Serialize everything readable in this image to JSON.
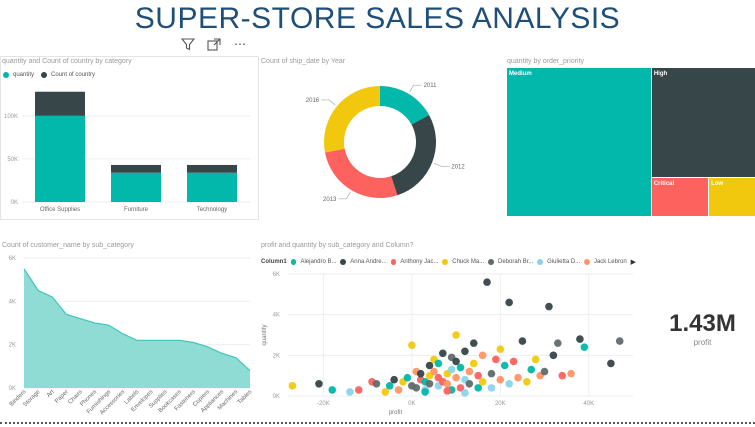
{
  "page_title": "SUPER-STORE SALES ANALYSIS",
  "toolbar": {
    "filter_icon": "filter-icon",
    "focus_icon": "focus-mode-icon",
    "more_icon": "more-options-icon",
    "more_glyph": "⋯"
  },
  "colors": {
    "teal": "#01b8aa",
    "dark": "#374649",
    "red": "#fd625e",
    "yellow": "#f2c80f",
    "grey": "#5f6b6d",
    "lightblue": "#8ad4eb",
    "orange": "#fe9666"
  },
  "kpi": {
    "value": "1.43M",
    "label": "profit"
  },
  "chart_data": [
    {
      "type": "bar",
      "title": "quantity and Count of country by category",
      "legend": [
        "quantity",
        "Count of country"
      ],
      "categories": [
        "Office Supplies",
        "Furniture",
        "Technology"
      ],
      "series": [
        {
          "name": "quantity",
          "values": [
            100000,
            34000,
            34000
          ]
        },
        {
          "name": "Count of country",
          "values": [
            28000,
            9000,
            9000
          ]
        }
      ],
      "yticks": [
        "0K",
        "50K",
        "100K"
      ],
      "ylim": [
        0,
        130000
      ]
    },
    {
      "type": "pie",
      "title": "Count of ship_date by Year",
      "labels": [
        "2011",
        "2012",
        "2013",
        "2016"
      ],
      "values": [
        17,
        28,
        27,
        28
      ]
    },
    {
      "type": "heatmap",
      "title": "quantity by order_priority",
      "labels": [
        "Medium",
        "High",
        "Critical",
        "Low"
      ],
      "values": [
        58,
        31,
        6,
        5
      ]
    },
    {
      "type": "area",
      "title": "Count of customer_name by sub_category",
      "categories": [
        "Binders",
        "Storage",
        "Art",
        "Paper",
        "Chairs",
        "Phones",
        "Furnishings",
        "Accessories",
        "Labels",
        "Envelopes",
        "Supplies",
        "Bookcases",
        "Fasteners",
        "Copiers",
        "Appliances",
        "Machines",
        "Tables"
      ],
      "values": [
        5500,
        4500,
        4200,
        3400,
        3200,
        3000,
        2900,
        2500,
        2200,
        2200,
        2200,
        2200,
        2100,
        1900,
        1600,
        1400,
        800
      ],
      "yticks": [
        "0K",
        "2K",
        "4K",
        "6K"
      ],
      "ylim": [
        0,
        6000
      ]
    },
    {
      "type": "scatter",
      "title": "profit and quantity by sub_category and Column?",
      "legend_title": "Column1",
      "legend": [
        "Alejandro B...",
        "Anna Andre...",
        "Anthony Jac...",
        "Chuck Ma...",
        "Deborah Br...",
        "Giulietta D...",
        "Jack Lebron"
      ],
      "xlabel": "profit",
      "ylabel": "quantity",
      "xticks": [
        "-20K",
        "0K",
        "20K",
        "40K"
      ],
      "yticks": [
        "0K",
        "2K",
        "4K",
        "6K"
      ],
      "xlim": [
        -28000,
        50000
      ],
      "ylim": [
        0,
        6000
      ],
      "points": [
        [
          -27000,
          500,
          3
        ],
        [
          -21000,
          600,
          1
        ],
        [
          -18000,
          300,
          0
        ],
        [
          -14000,
          200,
          5
        ],
        [
          -12000,
          300,
          2
        ],
        [
          -9000,
          700,
          2
        ],
        [
          -8000,
          600,
          4
        ],
        [
          -5000,
          500,
          0
        ],
        [
          -4000,
          800,
          1
        ],
        [
          -3000,
          300,
          6
        ],
        [
          -2000,
          700,
          3
        ],
        [
          -1000,
          900,
          0
        ],
        [
          0,
          500,
          4
        ],
        [
          0,
          2500,
          3
        ],
        [
          1000,
          1200,
          6
        ],
        [
          1000,
          400,
          4
        ],
        [
          2000,
          800,
          2
        ],
        [
          2000,
          1100,
          1
        ],
        [
          3000,
          300,
          5
        ],
        [
          3000,
          700,
          0
        ],
        [
          4000,
          1500,
          1
        ],
        [
          4000,
          1000,
          3
        ],
        [
          4000,
          600,
          4
        ],
        [
          5000,
          1800,
          3
        ],
        [
          5000,
          1200,
          6
        ],
        [
          6000,
          500,
          5
        ],
        [
          6000,
          900,
          2
        ],
        [
          6000,
          1600,
          0
        ],
        [
          7000,
          700,
          2
        ],
        [
          7000,
          2100,
          1
        ],
        [
          8000,
          1100,
          3
        ],
        [
          8000,
          600,
          6
        ],
        [
          9000,
          1900,
          4
        ],
        [
          9000,
          1300,
          5
        ],
        [
          9000,
          300,
          0
        ],
        [
          10000,
          1700,
          1
        ],
        [
          10000,
          900,
          6
        ],
        [
          10000,
          3000,
          3
        ],
        [
          11000,
          400,
          2
        ],
        [
          11000,
          1400,
          0
        ],
        [
          12000,
          2200,
          1
        ],
        [
          12000,
          800,
          5
        ],
        [
          13000,
          1200,
          6
        ],
        [
          13000,
          600,
          4
        ],
        [
          14000,
          1600,
          3
        ],
        [
          14000,
          2600,
          1
        ],
        [
          15000,
          1000,
          2
        ],
        [
          15000,
          400,
          0
        ],
        [
          16000,
          2000,
          6
        ],
        [
          16000,
          700,
          3
        ],
        [
          17000,
          5600,
          1
        ],
        [
          18000,
          1100,
          4
        ],
        [
          18000,
          400,
          5
        ],
        [
          19000,
          1800,
          2
        ],
        [
          20000,
          800,
          6
        ],
        [
          20000,
          2300,
          3
        ],
        [
          21000,
          1500,
          0
        ],
        [
          22000,
          4600,
          1
        ],
        [
          22000,
          600,
          5
        ],
        [
          23000,
          1700,
          2
        ],
        [
          24000,
          900,
          6
        ],
        [
          25000,
          2700,
          1
        ],
        [
          26000,
          700,
          3
        ],
        [
          27000,
          1300,
          0
        ],
        [
          28000,
          1800,
          3
        ],
        [
          29000,
          1000,
          6
        ],
        [
          30000,
          1200,
          4
        ],
        [
          31000,
          4400,
          1
        ],
        [
          32000,
          2000,
          1
        ],
        [
          33000,
          2600,
          4
        ],
        [
          34000,
          1000,
          2
        ],
        [
          36000,
          1100,
          6
        ],
        [
          38000,
          2800,
          1
        ],
        [
          39000,
          2400,
          0
        ],
        [
          45000,
          1600,
          1
        ],
        [
          47000,
          2700,
          4
        ],
        [
          3000,
          200,
          0
        ],
        [
          -6000,
          200,
          3
        ],
        [
          8000,
          250,
          2
        ],
        [
          12000,
          150,
          5
        ]
      ]
    }
  ]
}
